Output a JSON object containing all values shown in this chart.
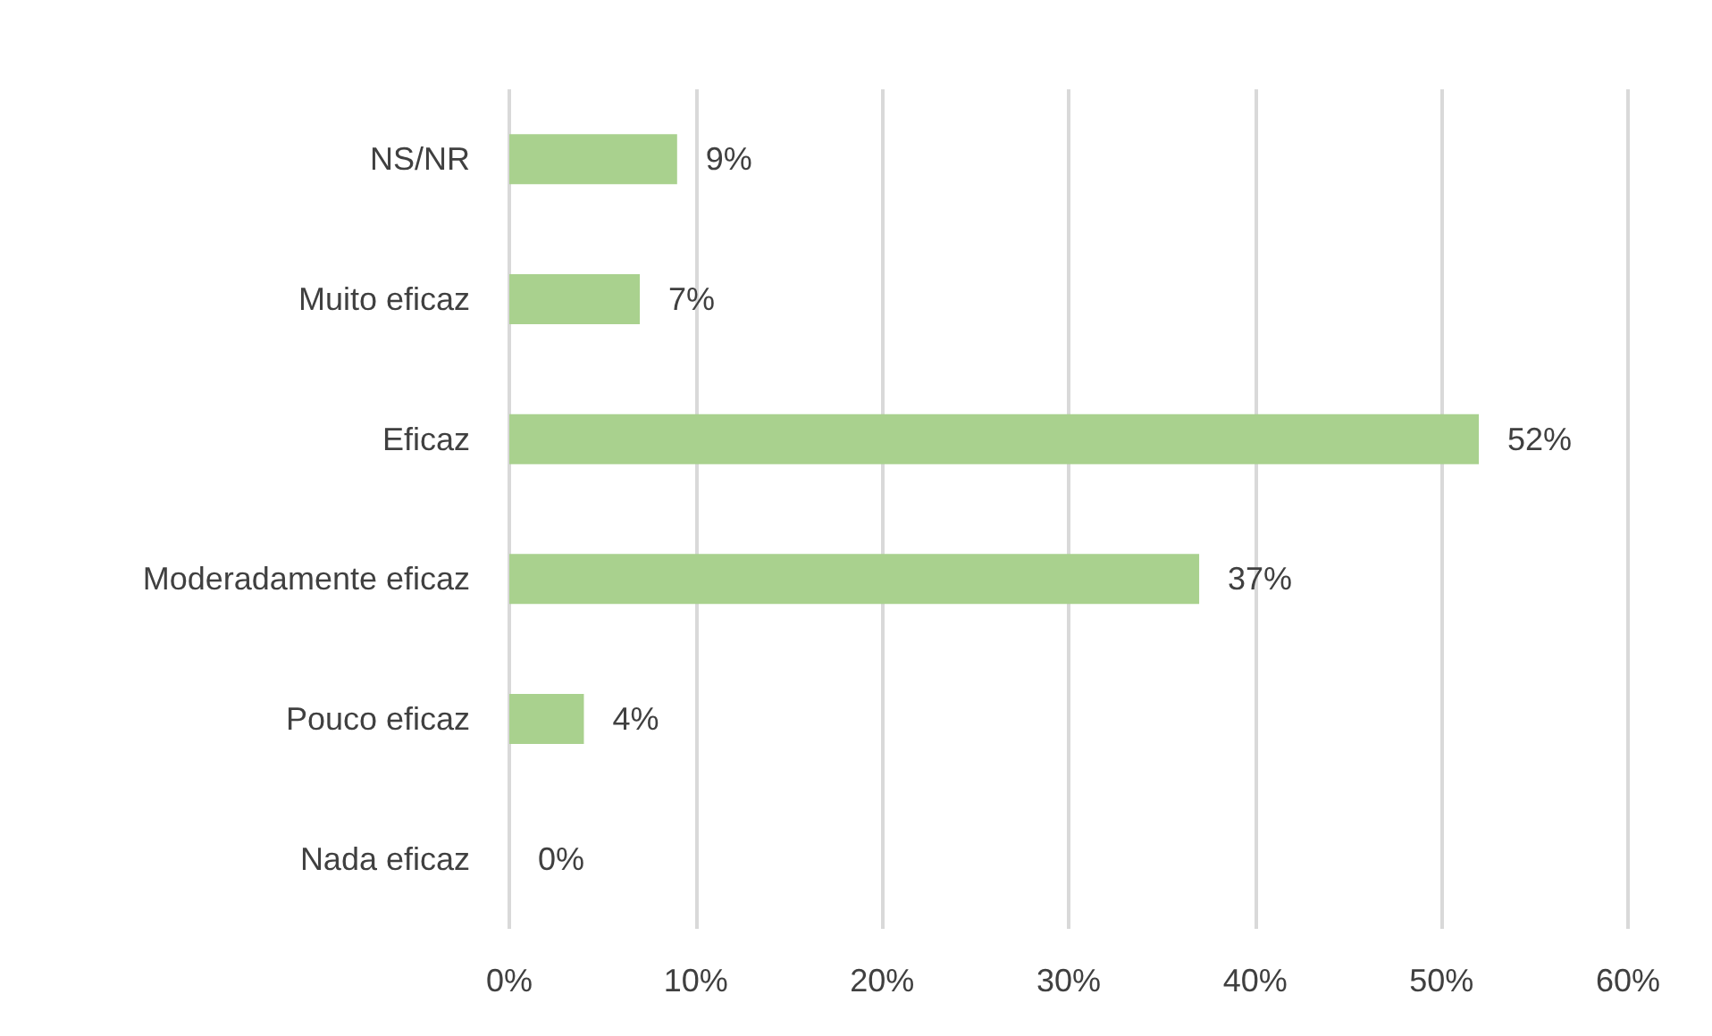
{
  "chart_data": {
    "type": "bar",
    "orientation": "horizontal",
    "categories": [
      "NS/NR",
      "Muito eficaz",
      "Eficaz",
      "Moderadamente eficaz",
      "Pouco eficaz",
      "Nada eficaz"
    ],
    "values": [
      9,
      7,
      52,
      37,
      4,
      0
    ],
    "value_labels": [
      "9%",
      "7%",
      "52%",
      "37%",
      "4%",
      "0%"
    ],
    "color": "#a9d18e",
    "xlim": [
      0,
      60
    ],
    "xticks": [
      {
        "value": 0,
        "label": "0%"
      },
      {
        "value": 10,
        "label": "10%"
      },
      {
        "value": 20,
        "label": "20%"
      },
      {
        "value": 30,
        "label": "30%"
      },
      {
        "value": 40,
        "label": "40%"
      },
      {
        "value": 50,
        "label": "50%"
      },
      {
        "value": 60,
        "label": "60%"
      }
    ],
    "grid": "x"
  }
}
